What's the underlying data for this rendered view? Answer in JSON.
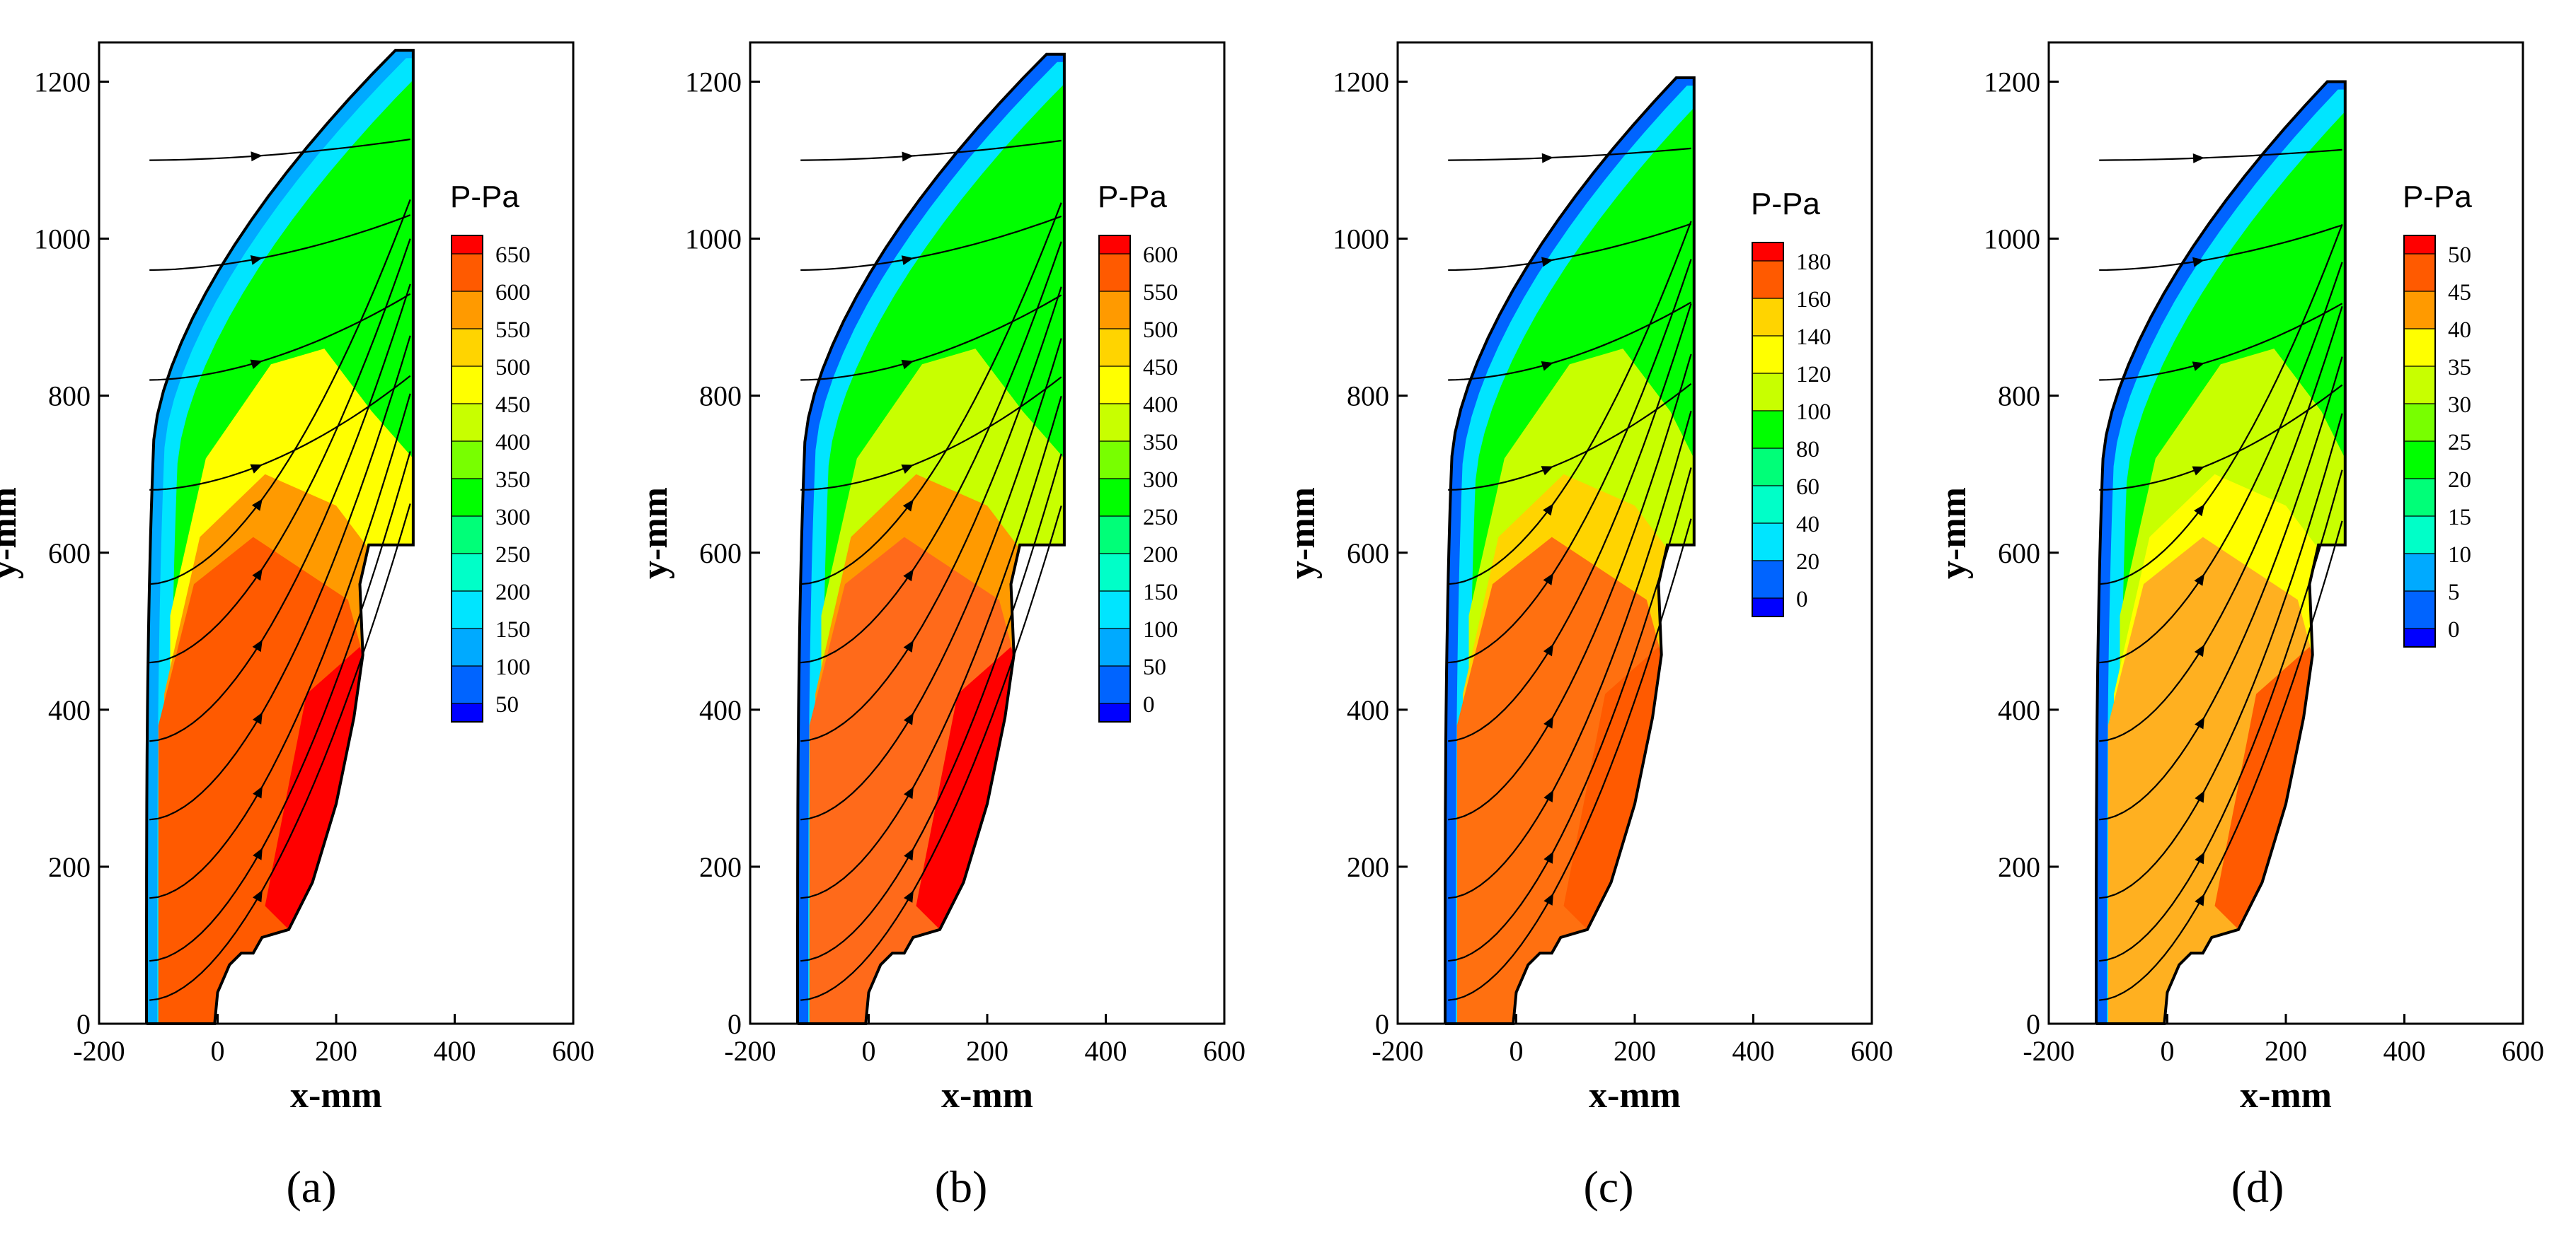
{
  "chart_data": [
    {
      "type": "contour",
      "panel_label": "(a)",
      "panel_letter": "a",
      "xlabel": "x-mm",
      "ylabel": "y-mm",
      "xlim": [
        -200,
        600
      ],
      "ylim": [
        0,
        1250
      ],
      "xticks": [
        -200,
        0,
        200,
        400,
        600
      ],
      "yticks": [
        0,
        200,
        400,
        600,
        800,
        1000,
        1200
      ],
      "colorbar": {
        "title": "P-Pa",
        "levels": [
          650,
          600,
          550,
          500,
          450,
          400,
          350,
          300,
          250,
          200,
          150,
          100,
          50
        ]
      },
      "geometry": {
        "nose_x": -120,
        "top_y": 1240,
        "exit_x": 330
      }
    },
    {
      "type": "contour",
      "panel_label": "(b)",
      "panel_letter": "b",
      "xlabel": "x-mm",
      "ylabel": "y-mm",
      "xlim": [
        -200,
        600
      ],
      "ylim": [
        0,
        1250
      ],
      "xticks": [
        -200,
        0,
        200,
        400,
        600
      ],
      "yticks": [
        0,
        200,
        400,
        600,
        800,
        1000,
        1200
      ],
      "colorbar": {
        "title": "P-Pa",
        "levels": [
          600,
          550,
          500,
          450,
          400,
          350,
          300,
          250,
          200,
          150,
          100,
          50,
          0
        ]
      },
      "geometry": {
        "nose_x": -120,
        "top_y": 1235,
        "exit_x": 330
      }
    },
    {
      "type": "contour",
      "panel_label": "(c)",
      "panel_letter": "c",
      "xlabel": "x-mm",
      "ylabel": "y-mm",
      "xlim": [
        -200,
        600
      ],
      "ylim": [
        0,
        1250
      ],
      "xticks": [
        -200,
        0,
        200,
        400,
        600
      ],
      "yticks": [
        0,
        200,
        400,
        600,
        800,
        1000,
        1200
      ],
      "colorbar": {
        "title": "P-Pa",
        "levels": [
          180,
          160,
          140,
          120,
          100,
          80,
          60,
          40,
          20,
          0
        ]
      },
      "geometry": {
        "nose_x": -120,
        "top_y": 1205,
        "exit_x": 300
      }
    },
    {
      "type": "contour",
      "panel_label": "(d)",
      "panel_letter": "d",
      "xlabel": "x-mm",
      "ylabel": "y-mm",
      "xlim": [
        -200,
        600
      ],
      "ylim": [
        0,
        1250
      ],
      "xticks": [
        -200,
        0,
        200,
        400,
        600
      ],
      "yticks": [
        0,
        200,
        400,
        600,
        800,
        1000,
        1200
      ],
      "colorbar": {
        "title": "P-Pa",
        "levels": [
          50,
          45,
          40,
          35,
          30,
          25,
          20,
          15,
          10,
          5,
          0
        ]
      },
      "geometry": {
        "nose_x": -120,
        "top_y": 1200,
        "exit_x": 300
      }
    }
  ],
  "colors": {
    "scale": [
      "#ff0000",
      "#ff5a00",
      "#ff9a00",
      "#ffd400",
      "#ffff00",
      "#c8ff00",
      "#78ff00",
      "#00ff00",
      "#00ff78",
      "#00ffc8",
      "#00e5ff",
      "#00aaff",
      "#0064ff",
      "#0000ff"
    ],
    "freestream_a": "#00aaff",
    "freestream": "#0064ff",
    "core_a": "#ff5a00",
    "core_b": "#ff6a1a",
    "core_c": "#ff7010",
    "core_d": "#ffb020"
  }
}
